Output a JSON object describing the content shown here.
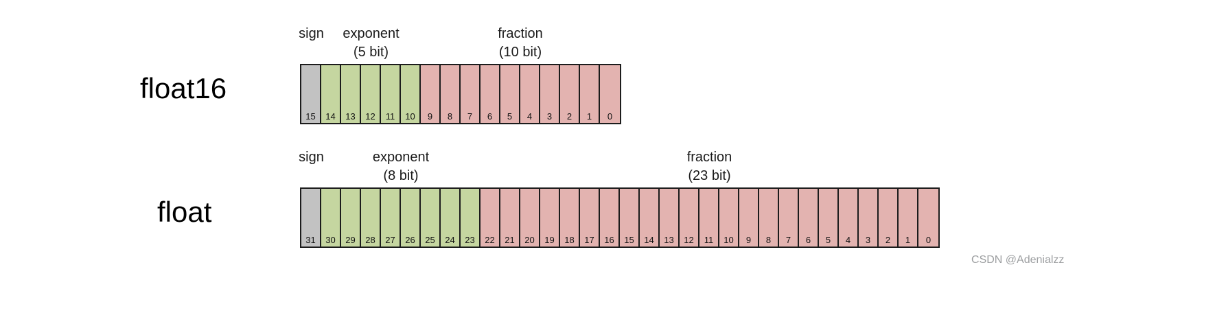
{
  "watermark": "CSDN @Adenialzz",
  "colors": {
    "sign": "#c2c2c2",
    "exponent": "#c5d6a0",
    "fraction": "#e3b3b0",
    "border": "#1c1c1c"
  },
  "rows": [
    {
      "id": "float16",
      "label": "float16",
      "total_bits": 16,
      "bit_labels": [
        "15",
        "14",
        "13",
        "12",
        "11",
        "10",
        "9",
        "8",
        "7",
        "6",
        "5",
        "4",
        "3",
        "2",
        "1",
        "0"
      ],
      "fields": [
        {
          "name": "sign",
          "label": "sign",
          "sublabel": "",
          "msb": 15,
          "lsb": 15,
          "color_key": "sign"
        },
        {
          "name": "exponent",
          "label": "exponent",
          "sublabel": "(5 bit)",
          "msb": 14,
          "lsb": 10,
          "color_key": "exponent"
        },
        {
          "name": "fraction",
          "label": "fraction",
          "sublabel": "(10 bit)",
          "msb": 9,
          "lsb": 0,
          "color_key": "fraction"
        }
      ]
    },
    {
      "id": "float",
      "label": "float",
      "total_bits": 32,
      "bit_labels": [
        "31",
        "30",
        "29",
        "28",
        "27",
        "26",
        "25",
        "24",
        "23",
        "22",
        "21",
        "20",
        "19",
        "18",
        "17",
        "16",
        "15",
        "14",
        "13",
        "12",
        "11",
        "10",
        "9",
        "8",
        "7",
        "6",
        "5",
        "4",
        "3",
        "2",
        "1",
        "0"
      ],
      "fields": [
        {
          "name": "sign",
          "label": "sign",
          "sublabel": "",
          "msb": 31,
          "lsb": 31,
          "color_key": "sign"
        },
        {
          "name": "exponent",
          "label": "exponent",
          "sublabel": "(8 bit)",
          "msb": 30,
          "lsb": 23,
          "color_key": "exponent"
        },
        {
          "name": "fraction",
          "label": "fraction",
          "sublabel": "(23 bit)",
          "msb": 22,
          "lsb": 0,
          "color_key": "fraction"
        }
      ]
    }
  ]
}
